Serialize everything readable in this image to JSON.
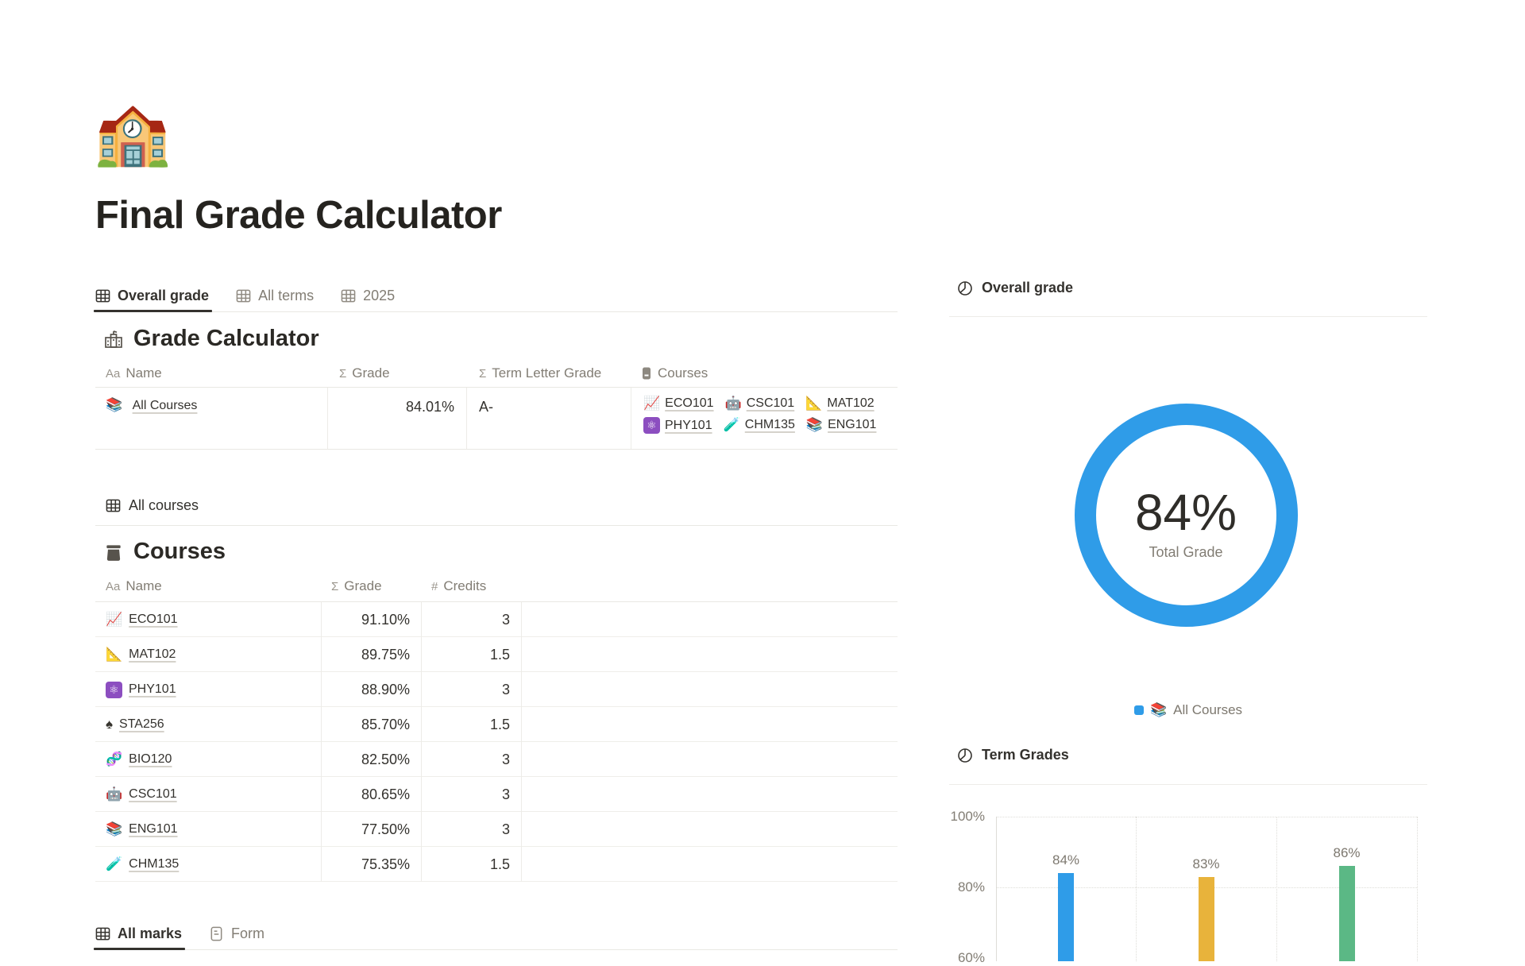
{
  "page": {
    "icon": "🏫",
    "title": "Final Grade Calculator"
  },
  "left": {
    "view_tabs": [
      {
        "label": "Overall grade",
        "active": true
      },
      {
        "label": "All terms",
        "active": false
      },
      {
        "label": "2025",
        "active": false
      }
    ],
    "grade_calculator": {
      "title": "Grade Calculator",
      "headers": {
        "name": "Name",
        "grade": "Grade",
        "term_letter": "Term Letter Grade",
        "courses": "Courses"
      },
      "type_glyphs": {
        "text": "Aa",
        "formula": "Σ",
        "number": "#"
      },
      "row": {
        "icon": "📚",
        "icon_name": "books",
        "name": "All Courses",
        "grade": "84.01%",
        "term_letter": "A-",
        "courses_line1": [
          {
            "icon": "📈",
            "icon_name": "chart-increasing",
            "label": "ECO101"
          },
          {
            "icon": "🤖",
            "icon_name": "robot",
            "label": "CSC101"
          },
          {
            "icon": "📐",
            "icon_name": "triangular-ruler",
            "label": "MAT102"
          }
        ],
        "courses_line2": [
          {
            "icon": "⚛",
            "icon_name": "atom-symbol",
            "label": "PHY101"
          },
          {
            "icon": "🧪",
            "icon_name": "test-tube",
            "label": "CHM135"
          },
          {
            "icon": "📚",
            "icon_name": "books",
            "label": "ENG101"
          }
        ]
      }
    },
    "all_courses_tab": "All courses",
    "courses": {
      "title": "Courses",
      "headers": {
        "name": "Name",
        "grade": "Grade",
        "credits": "Credits"
      },
      "rows": [
        {
          "icon": "📈",
          "icon_name": "chart-increasing",
          "name": "ECO101",
          "grade": "91.10%",
          "credits": "3"
        },
        {
          "icon": "📐",
          "icon_name": "triangular-ruler",
          "name": "MAT102",
          "grade": "89.75%",
          "credits": "1.5"
        },
        {
          "icon": "⚛",
          "icon_name": "atom-symbol",
          "name": "PHY101",
          "grade": "88.90%",
          "credits": "3"
        },
        {
          "icon": "♠",
          "icon_name": "spade-suit",
          "name": "STA256",
          "grade": "85.70%",
          "credits": "1.5"
        },
        {
          "icon": "🧬",
          "icon_name": "dna",
          "name": "BIO120",
          "grade": "82.50%",
          "credits": "3"
        },
        {
          "icon": "🤖",
          "icon_name": "robot",
          "name": "CSC101",
          "grade": "80.65%",
          "credits": "3"
        },
        {
          "icon": "📚",
          "icon_name": "books",
          "name": "ENG101",
          "grade": "77.50%",
          "credits": "3"
        },
        {
          "icon": "🧪",
          "icon_name": "test-tube",
          "name": "CHM135",
          "grade": "75.35%",
          "credits": "1.5"
        }
      ]
    },
    "bottom_tabs": [
      {
        "label": "All marks",
        "active": true
      },
      {
        "label": "Form",
        "active": false
      }
    ]
  },
  "right": {
    "overall_tab": "Overall grade",
    "donut": {
      "value": "84%",
      "label": "Total Grade",
      "color": "#2F9CE8",
      "legend_icon": "📚",
      "legend_label": "All Courses"
    },
    "term_tab": "Term Grades"
  },
  "chart_data": [
    {
      "type": "pie",
      "title": "Overall grade",
      "labels": [
        "All Courses"
      ],
      "values": [
        84
      ],
      "colors": [
        "#2F9CE8"
      ],
      "center_text": "84%",
      "center_subtext": "Total Grade",
      "legend_position": "bottom"
    },
    {
      "type": "bar",
      "title": "Term Grades",
      "categories": [
        "",
        "",
        ""
      ],
      "values": [
        84,
        83,
        86
      ],
      "data_labels": [
        "84%",
        "83%",
        "86%"
      ],
      "colors": [
        "#2F9CE8",
        "#E8B33B",
        "#5BB885"
      ],
      "ylabel": "",
      "ylim": [
        60,
        100
      ],
      "yticks": [
        "100%",
        "80%",
        "60%"
      ],
      "grid": true
    }
  ]
}
